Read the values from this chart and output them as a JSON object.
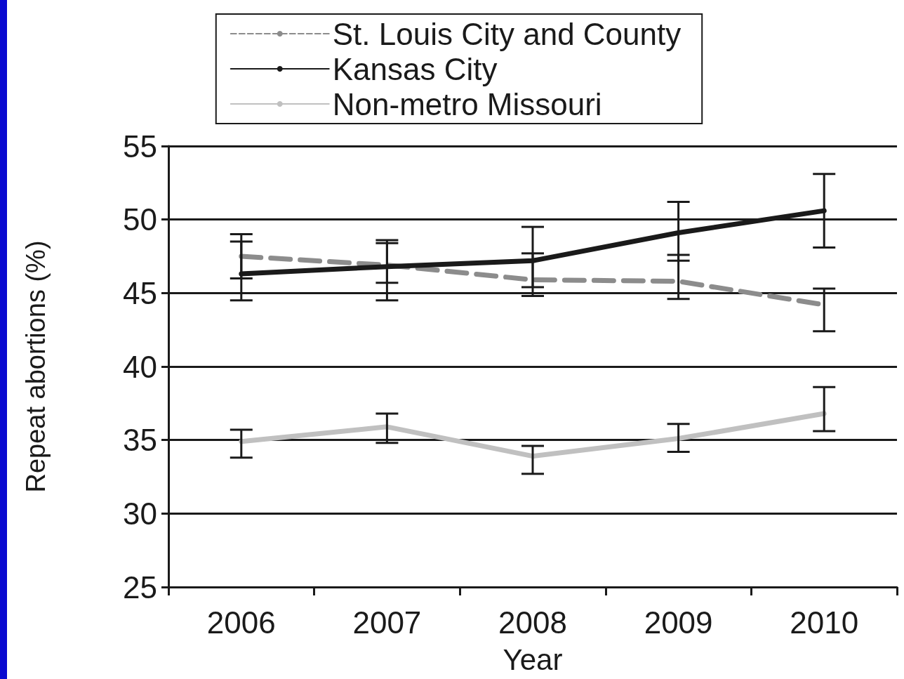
{
  "chart_data": {
    "type": "line",
    "xlabel": "Year",
    "ylabel": "Repeat abortions (%)",
    "categories": [
      "2006",
      "2007",
      "2008",
      "2009",
      "2010"
    ],
    "series": [
      {
        "name": "St. Louis City and County",
        "color": "#8c8c8c",
        "line_style": "dashed",
        "values": [
          47.5,
          46.9,
          45.9,
          45.8,
          44.2
        ],
        "errors": [
          [
            46.0,
            49.0
          ],
          [
            45.7,
            48.4
          ],
          [
            45.4,
            47.7
          ],
          [
            44.6,
            47.6
          ],
          [
            42.4,
            45.3
          ]
        ]
      },
      {
        "name": "Kansas City",
        "color": "#1a1a1a",
        "line_style": "solid",
        "values": [
          46.3,
          46.8,
          47.2,
          49.1,
          50.6
        ],
        "errors": [
          [
            44.5,
            48.5
          ],
          [
            44.5,
            48.6
          ],
          [
            44.8,
            49.5
          ],
          [
            47.2,
            51.2
          ],
          [
            48.1,
            53.1
          ]
        ]
      },
      {
        "name": "Non-metro Missouri",
        "color": "#c0c0c0",
        "line_style": "solid",
        "values": [
          34.9,
          35.9,
          33.9,
          35.1,
          36.8
        ],
        "errors": [
          [
            33.8,
            35.7
          ],
          [
            34.8,
            36.8
          ],
          [
            32.7,
            34.6
          ],
          [
            34.2,
            36.1
          ],
          [
            35.6,
            38.6
          ]
        ]
      }
    ],
    "ylim": [
      25,
      55
    ],
    "yticks": [
      25,
      30,
      35,
      40,
      45,
      50,
      55
    ],
    "grid": "y",
    "legend": "top",
    "marker": "none"
  }
}
